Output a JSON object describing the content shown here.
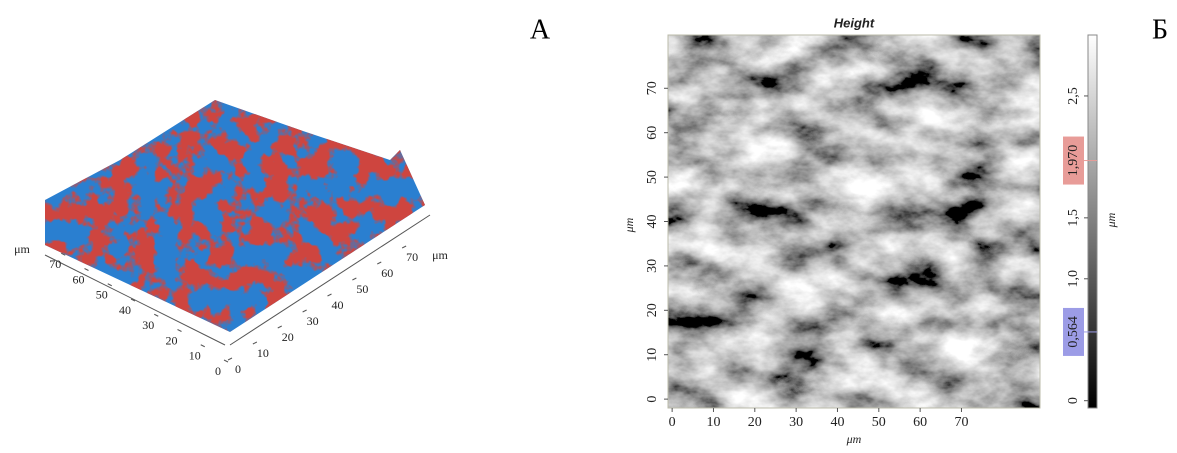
{
  "chart_data": [
    {
      "type": "surface3d",
      "panel_label": "А",
      "x_label": "μm",
      "y_label": "μm",
      "xlim": [
        0,
        80
      ],
      "ylim": [
        0,
        80
      ],
      "xticks": [
        0,
        10,
        20,
        30,
        40,
        50,
        60,
        70
      ],
      "yticks": [
        0,
        10,
        20,
        30,
        40,
        50,
        60,
        70
      ]
    },
    {
      "type": "heatmap",
      "panel_label": "Б",
      "title": "Height",
      "x_label": "μm",
      "y_label": "μm",
      "xlim": [
        -1,
        89
      ],
      "ylim": [
        -2,
        82
      ],
      "xticks": [
        0,
        10,
        20,
        30,
        40,
        50,
        60,
        70
      ],
      "yticks": [
        0,
        10,
        20,
        30,
        40,
        50,
        60,
        70
      ],
      "colorbar": {
        "label": "μm",
        "lim": [
          -0.06,
          3.0
        ],
        "ticks": [
          0,
          {
            "value": 1.0,
            "label": "1,0"
          },
          {
            "value": 1.5,
            "label": "1,5"
          },
          {
            "value": 2.5,
            "label": "2,5"
          }
        ],
        "markers": {
          "values": [
            0.564,
            1.97
          ],
          "value_labels": [
            "0,564",
            "1,970"
          ],
          "colors": [
            "#9c9ce6",
            "#e89c98"
          ]
        }
      }
    }
  ]
}
